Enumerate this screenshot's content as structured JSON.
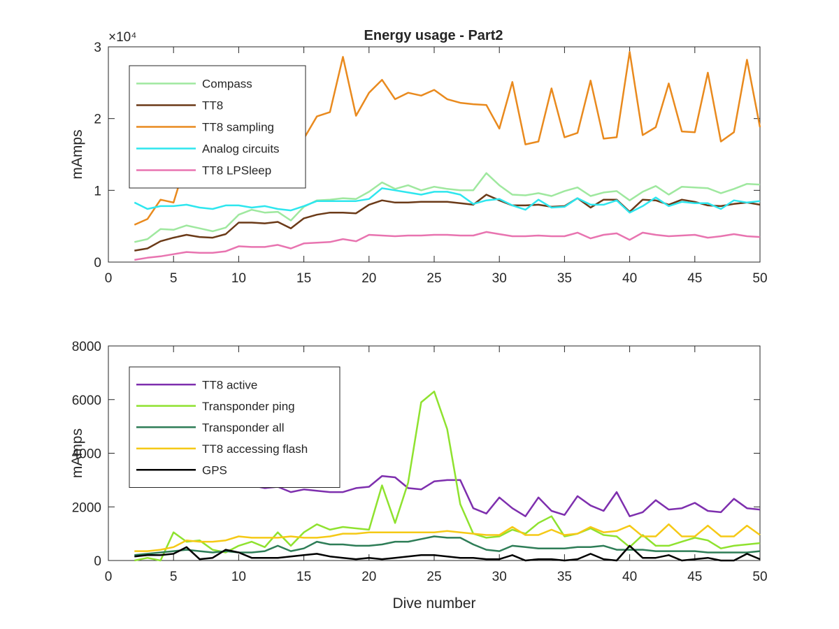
{
  "figure_title": "Energy usage - Part2",
  "chart_data": [
    {
      "type": "line",
      "title": "Energy usage - Part2",
      "xlabel": "",
      "ylabel": "mAmps",
      "y_exponent_label": "×10⁴",
      "xlim": [
        0,
        50
      ],
      "ylim": [
        0,
        30000
      ],
      "xticks": [
        0,
        5,
        10,
        15,
        20,
        25,
        30,
        35,
        40,
        45,
        50
      ],
      "yticks": [
        0,
        10000,
        20000,
        30000
      ],
      "ytick_labels": [
        "0",
        "1",
        "2",
        "3"
      ],
      "grid": false,
      "legend_position": "top-left",
      "x": [
        2,
        3,
        4,
        5,
        6,
        7,
        8,
        9,
        10,
        11,
        12,
        13,
        14,
        15,
        16,
        17,
        18,
        19,
        20,
        21,
        22,
        23,
        24,
        25,
        26,
        27,
        28,
        29,
        30,
        31,
        32,
        33,
        34,
        35,
        36,
        37,
        38,
        39,
        40,
        41,
        42,
        43,
        44,
        45,
        46,
        47,
        48,
        49,
        50
      ],
      "series": [
        {
          "name": "Compass",
          "color": "#9fe89f",
          "values": [
            2800,
            3200,
            4600,
            4500,
            5100,
            4700,
            4300,
            4800,
            6600,
            7300,
            6900,
            7000,
            5800,
            7700,
            8600,
            8700,
            8900,
            8800,
            9800,
            11100,
            10200,
            10700,
            10000,
            10500,
            10200,
            10000,
            10000,
            12400,
            10700,
            9400,
            9300,
            9600,
            9200,
            9900,
            10400,
            9200,
            9700,
            9900,
            8600,
            9800,
            10600,
            9400,
            10500,
            10400,
            10300,
            9600,
            10200,
            10900,
            10800
          ]
        },
        {
          "name": "TT8",
          "color": "#6b3a18",
          "values": [
            1600,
            1900,
            2900,
            3400,
            3800,
            3500,
            3400,
            3900,
            5500,
            5500,
            5400,
            5600,
            4700,
            6100,
            6600,
            6900,
            6900,
            6800,
            8000,
            8600,
            8300,
            8300,
            8400,
            8400,
            8400,
            8200,
            8000,
            9400,
            8600,
            7900,
            7900,
            8000,
            7700,
            7800,
            8900,
            7600,
            8700,
            8700,
            7000,
            8700,
            8600,
            8000,
            8700,
            8400,
            7900,
            7800,
            8100,
            8300,
            8000
          ]
        },
        {
          "name": "TT8 sampling",
          "color": "#e98a1e",
          "values": [
            5200,
            6000,
            8700,
            8300,
            14200,
            14800,
            14600,
            15100,
            15600,
            15900,
            16200,
            16400,
            16800,
            17200,
            20300,
            20900,
            28600,
            20400,
            23600,
            25400,
            22700,
            23600,
            23200,
            24000,
            22700,
            22200,
            22000,
            21900,
            18600,
            25100,
            16400,
            16800,
            24200,
            17400,
            18000,
            25300,
            17200,
            17400,
            29300,
            17700,
            18800,
            24900,
            18200,
            18100,
            26400,
            16800,
            18100,
            28200,
            18800
          ]
        },
        {
          "name": "Analog circuits",
          "color": "#2ee6ee",
          "values": [
            8300,
            7400,
            7800,
            7800,
            8000,
            7600,
            7400,
            7900,
            7900,
            7600,
            7800,
            7400,
            7200,
            7800,
            8500,
            8500,
            8500,
            8500,
            8800,
            10300,
            10000,
            9700,
            9400,
            9800,
            9800,
            9400,
            8100,
            8600,
            8800,
            7900,
            7300,
            8700,
            7600,
            7700,
            8900,
            8000,
            8000,
            8600,
            6900,
            7800,
            9000,
            7800,
            8400,
            8200,
            8200,
            7400,
            8600,
            8300,
            8500
          ]
        },
        {
          "name": "TT8 LPSleep",
          "color": "#e874b0",
          "values": [
            300,
            600,
            800,
            1100,
            1400,
            1300,
            1300,
            1500,
            2200,
            2100,
            2100,
            2400,
            1900,
            2600,
            2700,
            2800,
            3200,
            2900,
            3800,
            3700,
            3600,
            3700,
            3700,
            3800,
            3800,
            3700,
            3700,
            4200,
            3900,
            3600,
            3600,
            3700,
            3600,
            3600,
            4100,
            3300,
            3800,
            4000,
            3100,
            4100,
            3800,
            3600,
            3700,
            3800,
            3400,
            3600,
            3900,
            3600,
            3500
          ]
        }
      ]
    },
    {
      "type": "line",
      "title": "",
      "xlabel": "Dive number",
      "ylabel": "mAmps",
      "xlim": [
        0,
        50
      ],
      "ylim": [
        0,
        8000
      ],
      "xticks": [
        0,
        5,
        10,
        15,
        20,
        25,
        30,
        35,
        40,
        45,
        50
      ],
      "yticks": [
        0,
        2000,
        4000,
        6000,
        8000
      ],
      "ytick_labels": [
        "0",
        "2000",
        "4000",
        "6000",
        "8000"
      ],
      "grid": false,
      "legend_position": "top-left",
      "x": [
        2,
        3,
        4,
        5,
        6,
        7,
        8,
        9,
        10,
        11,
        12,
        13,
        14,
        15,
        16,
        17,
        18,
        19,
        20,
        21,
        22,
        23,
        24,
        25,
        26,
        27,
        28,
        29,
        30,
        31,
        32,
        33,
        34,
        35,
        36,
        37,
        38,
        39,
        40,
        41,
        42,
        43,
        44,
        45,
        46,
        47,
        48,
        49,
        50
      ],
      "series": [
        {
          "name": "TT8 active",
          "color": "#7e2fae",
          "values": [
            3100,
            3050,
            3000,
            3100,
            3100,
            3050,
            3000,
            2900,
            2750,
            2800,
            2700,
            2750,
            2550,
            2650,
            2600,
            2550,
            2550,
            2700,
            2750,
            3150,
            3100,
            2700,
            2650,
            2950,
            3000,
            3000,
            1950,
            1750,
            2350,
            1950,
            1650,
            2350,
            1850,
            1700,
            2400,
            2050,
            1850,
            2550,
            1650,
            1800,
            2250,
            1900,
            1950,
            2150,
            1850,
            1800,
            2300,
            1950,
            1900
          ]
        },
        {
          "name": "Transponder ping",
          "color": "#8fe22f",
          "values": [
            0,
            100,
            0,
            1050,
            700,
            750,
            400,
            300,
            550,
            700,
            500,
            1050,
            550,
            1050,
            1350,
            1150,
            1250,
            1200,
            1150,
            2800,
            1400,
            2900,
            5900,
            6300,
            4900,
            2100,
            1000,
            850,
            900,
            1150,
            1000,
            1400,
            1650,
            900,
            1000,
            1200,
            950,
            900,
            500,
            950,
            550,
            550,
            700,
            850,
            750,
            450,
            550,
            600,
            650
          ]
        },
        {
          "name": "Transponder all",
          "color": "#2e7d57",
          "values": [
            200,
            250,
            300,
            350,
            400,
            350,
            300,
            350,
            300,
            300,
            350,
            550,
            350,
            450,
            700,
            600,
            600,
            550,
            550,
            600,
            700,
            700,
            800,
            900,
            850,
            850,
            600,
            400,
            350,
            550,
            500,
            450,
            450,
            450,
            500,
            500,
            550,
            400,
            400,
            400,
            350,
            350,
            350,
            350,
            300,
            300,
            300,
            300,
            350
          ]
        },
        {
          "name": "TT8 accessing flash",
          "color": "#f5c916",
          "values": [
            350,
            350,
            400,
            500,
            750,
            700,
            700,
            750,
            900,
            850,
            850,
            850,
            900,
            850,
            850,
            900,
            1000,
            1000,
            1050,
            1050,
            1050,
            1050,
            1050,
            1050,
            1100,
            1050,
            1000,
            950,
            950,
            1250,
            950,
            950,
            1150,
            950,
            1000,
            1250,
            1050,
            1100,
            1300,
            900,
            900,
            1350,
            900,
            900,
            1300,
            900,
            900,
            1300,
            950
          ]
        },
        {
          "name": "GPS",
          "color": "#000000",
          "values": [
            150,
            200,
            200,
            250,
            500,
            50,
            100,
            400,
            300,
            100,
            100,
            100,
            150,
            200,
            250,
            150,
            100,
            50,
            100,
            50,
            100,
            150,
            200,
            200,
            150,
            100,
            100,
            50,
            50,
            200,
            0,
            50,
            50,
            0,
            50,
            250,
            50,
            0,
            550,
            100,
            100,
            200,
            0,
            50,
            100,
            0,
            0,
            250,
            50
          ]
        }
      ]
    }
  ]
}
